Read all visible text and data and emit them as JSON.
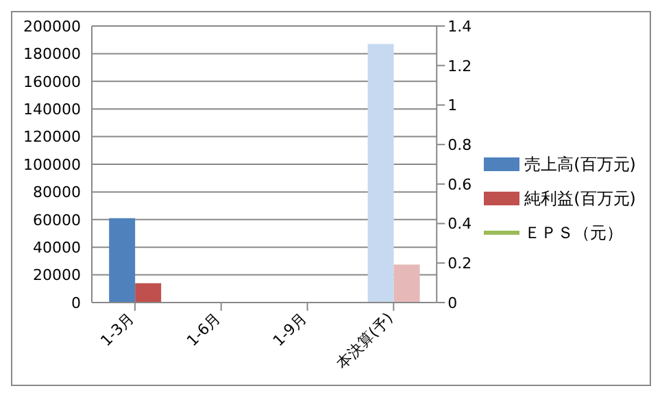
{
  "chart_data": {
    "type": "bar",
    "categories": [
      "1-3月",
      "1-6月",
      "1-9月",
      "本決算(予)"
    ],
    "series": [
      {
        "name": "売上高(百万元)",
        "color": "#4f81bd",
        "colors": [
          "#4f81bd",
          "#4f81bd",
          "#4f81bd",
          "#c6d9f1"
        ],
        "values": [
          61000,
          null,
          null,
          187000
        ]
      },
      {
        "name": "純利益(百万元)",
        "color": "#c0504d",
        "colors": [
          "#c0504d",
          "#c0504d",
          "#c0504d",
          "#e6b9b8"
        ],
        "values": [
          14000,
          null,
          null,
          27500
        ]
      },
      {
        "name": "ＥＰＳ（元）",
        "type": "line",
        "axis": "y2",
        "color": "#9bbb59",
        "values": [
          null,
          null,
          null,
          null
        ]
      }
    ],
    "ylim": [
      0,
      200000
    ],
    "yticks": [
      0,
      20000,
      40000,
      60000,
      80000,
      100000,
      120000,
      140000,
      160000,
      180000,
      200000
    ],
    "y2lim": [
      0,
      1.4
    ],
    "y2ticks": [
      0,
      0.2,
      0.4,
      0.6,
      0.8,
      1,
      1.2,
      1.4
    ],
    "grid": "y",
    "legend": "right"
  }
}
